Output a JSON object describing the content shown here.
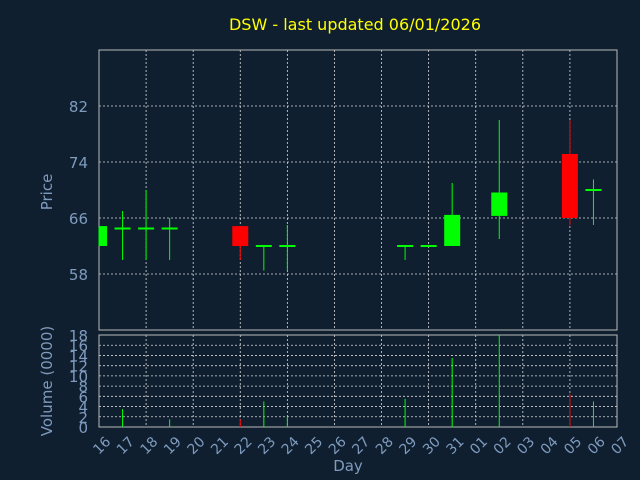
{
  "chart_data": {
    "type": "candlestick",
    "title": "DSW - last updated 06/01/2026",
    "xlabel": "Day",
    "categories": [
      "16",
      "17",
      "18",
      "19",
      "20",
      "21",
      "22",
      "23",
      "24",
      "25",
      "26",
      "27",
      "28",
      "29",
      "30",
      "31",
      "01",
      "02",
      "03",
      "04",
      "05",
      "06",
      "07"
    ],
    "price": {
      "ylabel": "Price",
      "ylim": [
        50,
        90
      ],
      "yticks": [
        58,
        66,
        74,
        82
      ],
      "candles": [
        {
          "x": "16",
          "open": 62,
          "close": 64.7,
          "high": 64.7,
          "low": 62,
          "color": "#00ff00"
        },
        {
          "x": "17",
          "open": 64.5,
          "close": 64.5,
          "high": 67,
          "low": 60,
          "color": "#00ff00"
        },
        {
          "x": "18",
          "open": 64.5,
          "close": 64.5,
          "high": 70,
          "low": 60,
          "color": "#00ff00"
        },
        {
          "x": "19",
          "open": 64.5,
          "close": 64.5,
          "high": 66,
          "low": 60,
          "color": "#00ff00"
        },
        {
          "x": "22",
          "open": 64.7,
          "close": 62,
          "high": 64.7,
          "low": 60,
          "color": "#ff0000"
        },
        {
          "x": "23",
          "open": 62,
          "close": 62,
          "high": 62,
          "low": 58.5,
          "color": "#00ff00"
        },
        {
          "x": "24",
          "open": 62,
          "close": 62,
          "high": 65,
          "low": 58.5,
          "color": "#00ff00"
        },
        {
          "x": "29",
          "open": 62,
          "close": 62,
          "high": 62,
          "low": 60,
          "color": "#00ff00"
        },
        {
          "x": "30",
          "open": 62,
          "close": 62,
          "high": 62,
          "low": 62,
          "color": "#00ff00"
        },
        {
          "x": "31",
          "open": 62,
          "close": 66.3,
          "high": 71,
          "low": 62,
          "color": "#00ff00"
        },
        {
          "x": "02",
          "open": 66.3,
          "close": 69.5,
          "high": 80,
          "low": 63,
          "color": "#00ff00"
        },
        {
          "x": "05",
          "open": 75,
          "close": 66,
          "high": 80,
          "low": 65,
          "color": "#ff0000"
        },
        {
          "x": "06",
          "open": 70,
          "close": 70,
          "high": 71.5,
          "low": 65,
          "color": "#00ff00"
        }
      ]
    },
    "volume": {
      "ylabel": "Volume (0000)",
      "ylim": [
        0,
        18
      ],
      "yticks": [
        0,
        2,
        4,
        6,
        8,
        10,
        12,
        14,
        16,
        18
      ],
      "bars": [
        {
          "x": "17",
          "value": 3.5,
          "color": "#00ff00"
        },
        {
          "x": "19",
          "value": 1.5,
          "color": "#00ff00"
        },
        {
          "x": "22",
          "value": 1.5,
          "color": "#ff0000"
        },
        {
          "x": "23",
          "value": 5,
          "color": "#00ff00"
        },
        {
          "x": "24",
          "value": 2,
          "color": "#00ff00"
        },
        {
          "x": "29",
          "value": 5.5,
          "color": "#00ff00"
        },
        {
          "x": "31",
          "value": 13.5,
          "color": "#00ff00"
        },
        {
          "x": "02",
          "value": 18,
          "color": "#00ff00"
        },
        {
          "x": "05",
          "value": 6.5,
          "color": "#ff0000"
        },
        {
          "x": "06",
          "value": 5,
          "color": "#00ff00"
        }
      ]
    },
    "grid": true,
    "colors": {
      "background": "#0f1f30",
      "up": "#00ff00",
      "down": "#ff0000",
      "title": "#ffff00",
      "axis_text": "#7f9bbd"
    }
  }
}
